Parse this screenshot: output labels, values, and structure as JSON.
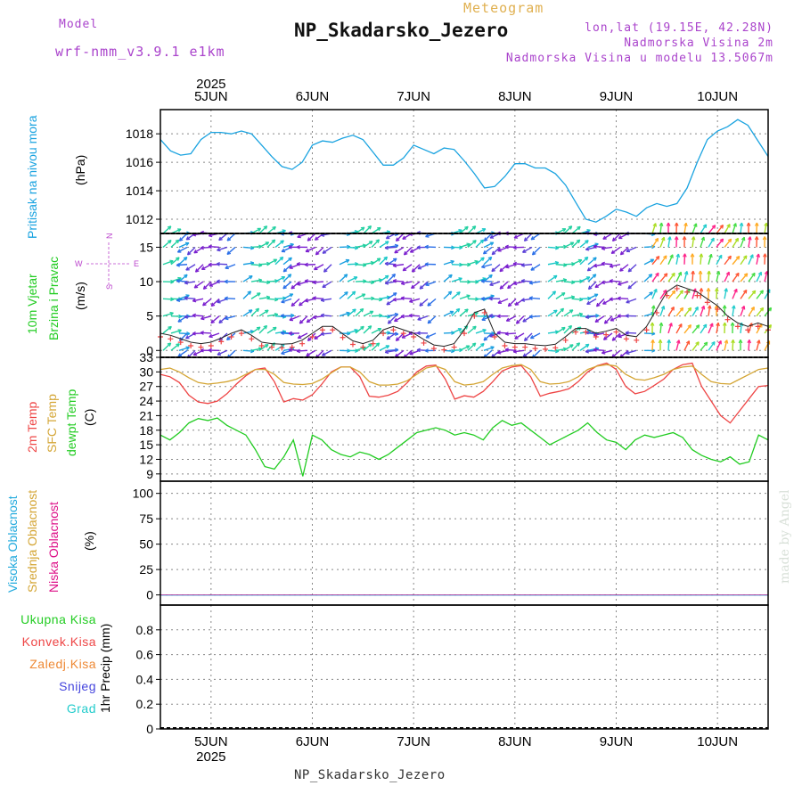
{
  "header": {
    "model_label": "Model",
    "model_name": "wrf-nmm_v3.9.1 e1km",
    "meteogram_label": "Meteogram",
    "station": "NP_Skadarsko_Jezero",
    "lonlat": "lon,lat (19.15E, 42.28N)",
    "elevation": "Nadmorska Visina 2m",
    "model_elevation": "Nadmorska Visina u modelu 13.5067m",
    "footer_station": "NP_Skadarsko_Jezero",
    "credit": "made by Angel"
  },
  "colors": {
    "pressure": "#1aa3e0",
    "wind_label": "#22cc22",
    "compass": "#bb44cc",
    "temp2m": "#ee4444",
    "sfc": "#d4a534",
    "dewp": "#22cc22",
    "high_cloud": "#22aadd",
    "mid_cloud": "#d4a534",
    "low_cloud": "#dd1188",
    "precip_total": "#22cc22",
    "precip_conv": "#ee4444",
    "precip_frz": "#ee8833",
    "snow": "#4444dd",
    "hail": "#22cccc",
    "header_purple": "#aa44cc",
    "header_gold": "#e0b050"
  },
  "axis": {
    "year": "2025",
    "dates": [
      "5JUN",
      "6JUN",
      "7JUN",
      "8JUN",
      "9JUN",
      "10JUN"
    ]
  },
  "panels": {
    "pressure": {
      "label1": "Pritisak na nivou mora",
      "label2": "(hPa)",
      "ticks": [
        "1012",
        "1014",
        "1016",
        "1018"
      ]
    },
    "wind": {
      "label1": "10m Vjetar",
      "label2": "Brzina i Pravac",
      "label3": "(m/s)",
      "ticks": [
        "0",
        "5",
        "10",
        "15"
      ],
      "compass_n": "N",
      "compass_s": "S",
      "compass_w": "W",
      "compass_e": "E"
    },
    "temp": {
      "label1": "2m Temp",
      "label2": "SFC Temp",
      "label3": "dewpt Temp",
      "label4": "(C)",
      "ticks": [
        "9",
        "12",
        "15",
        "18",
        "21",
        "24",
        "27",
        "30",
        "33"
      ]
    },
    "cloud": {
      "label1": "Visoka Oblacnost",
      "label2": "Srednja Oblacnost",
      "label3": "Niska Oblacnost",
      "label4": "(%)",
      "ticks": [
        "0",
        "25",
        "50",
        "75",
        "100"
      ]
    },
    "precip": {
      "labels": [
        "Ukupna Kisa",
        "Konvek.Kisa",
        "Zaledj.Kisa",
        "Snijeg",
        "Grad"
      ],
      "ylabel": "1hr Precip (mm)",
      "ticks": [
        "0",
        "0.2",
        "0.4",
        "0.6",
        "0.8"
      ]
    }
  },
  "chart_data": [
    {
      "type": "line",
      "name": "pressure",
      "x_start_day": 4.5,
      "x_end_day": 10.5,
      "ylim": [
        1011,
        1019.7
      ],
      "series": [
        {
          "color": "#1aa3e0",
          "values": [
            1017.6,
            1016.8,
            1016.5,
            1016.6,
            1017.6,
            1018.1,
            1018.1,
            1018.0,
            1018.2,
            1018.0,
            1017.2,
            1016.4,
            1015.7,
            1015.5,
            1016.0,
            1017.2,
            1017.5,
            1017.4,
            1017.7,
            1017.9,
            1017.6,
            1016.7,
            1015.8,
            1015.8,
            1016.3,
            1017.2,
            1016.9,
            1016.6,
            1017.0,
            1016.9,
            1016.1,
            1015.2,
            1014.2,
            1014.3,
            1015.0,
            1015.9,
            1015.9,
            1015.6,
            1015.6,
            1015.2,
            1014.4,
            1013.2,
            1012.0,
            1011.8,
            1012.2,
            1012.7,
            1012.5,
            1012.2,
            1012.8,
            1013.1,
            1012.9,
            1013.1,
            1014.2,
            1016.0,
            1017.6,
            1018.2,
            1018.5,
            1019.0,
            1018.6,
            1017.5,
            1016.4
          ]
        }
      ],
      "xlabel": "",
      "ylabel": "(hPa)"
    },
    {
      "type": "line",
      "name": "wind",
      "ylim": [
        -1,
        17
      ],
      "series": [
        {
          "color": "#ee4444",
          "values": [
            2.5,
            2.2,
            1.7,
            1.2,
            1.0,
            1.2,
            1.8,
            2.5,
            3.0,
            2.2,
            1.2,
            1.0,
            0.9,
            1.0,
            1.5,
            2.5,
            3.5,
            3.5,
            2.4,
            1.4,
            1.0,
            1.5,
            3.0,
            3.5,
            3.0,
            2.5,
            1.6,
            0.8,
            0.6,
            1.0,
            3.0,
            5.5,
            6.0,
            2.5,
            1.2,
            1.0,
            1.0,
            0.8,
            0.7,
            0.9,
            2.0,
            3.2,
            3.2,
            2.5,
            2.8,
            3.2,
            2.2,
            2.0,
            3.5,
            6.0,
            8.5,
            9.5,
            9.0,
            8.5,
            7.5,
            6.5,
            5.0,
            4.0,
            3.5,
            4.0,
            3.5
          ]
        }
      ]
    },
    {
      "type": "line",
      "name": "temperature",
      "ylim": [
        7.5,
        33
      ],
      "series": [
        {
          "name": "2m Temp",
          "color": "#ee4444",
          "values": [
            29.5,
            29.0,
            27.8,
            25.2,
            23.8,
            23.5,
            24.0,
            25.5,
            27.5,
            29.2,
            30.5,
            30.8,
            28.0,
            23.8,
            24.5,
            24.2,
            25.3,
            27.5,
            30.0,
            31.0,
            31.0,
            29.0,
            25.0,
            24.8,
            25.2,
            26.0,
            27.8,
            30.0,
            31.2,
            31.4,
            28.5,
            24.4,
            25.1,
            24.8,
            26.0,
            28.0,
            30.2,
            31.0,
            31.3,
            29.0,
            25.0,
            25.6,
            26.0,
            26.5,
            28.0,
            30.0,
            31.3,
            31.8,
            30.5,
            27.0,
            25.5,
            26.0,
            27.2,
            28.5,
            30.5,
            31.5,
            31.8,
            27.0,
            24.0,
            21.0,
            19.5,
            22.0,
            24.5,
            27.0,
            27.2
          ]
        },
        {
          "name": "SFC Temp",
          "color": "#d4a534",
          "values": [
            30.5,
            30.8,
            30.0,
            28.8,
            27.8,
            27.5,
            27.7,
            28.0,
            28.5,
            29.5,
            30.5,
            30.5,
            29.5,
            27.8,
            27.5,
            27.4,
            27.6,
            28.5,
            29.8,
            31.0,
            31.0,
            30.0,
            28.0,
            27.3,
            27.3,
            27.5,
            28.2,
            29.5,
            30.8,
            31.2,
            30.5,
            28.0,
            27.3,
            27.5,
            28.0,
            29.5,
            30.8,
            31.3,
            31.5,
            30.5,
            28.0,
            27.5,
            27.6,
            28.0,
            29.0,
            30.5,
            31.2,
            31.5,
            31.2,
            29.5,
            28.5,
            28.3,
            28.8,
            29.5,
            30.5,
            31.0,
            31.2,
            29.5,
            28.0,
            27.6,
            27.5,
            28.5,
            29.5,
            30.5,
            30.8
          ]
        },
        {
          "name": "dewpt Temp",
          "color": "#22cc22",
          "values": [
            17.0,
            16.0,
            17.5,
            19.5,
            20.4,
            20.0,
            20.5,
            19.0,
            18.0,
            17.0,
            14.0,
            10.5,
            10.0,
            12.5,
            16.0,
            8.5,
            17.0,
            16.0,
            14.0,
            13.0,
            12.5,
            13.5,
            13.0,
            12.0,
            13.0,
            14.5,
            16.0,
            17.5,
            18.0,
            18.5,
            18.0,
            17.0,
            17.5,
            17.0,
            16.0,
            18.5,
            20.0,
            19.0,
            19.5,
            18.0,
            16.5,
            15.0,
            16.0,
            17.0,
            18.0,
            19.5,
            17.5,
            16.0,
            15.5,
            14.0,
            16.0,
            17.0,
            16.5,
            17.0,
            17.5,
            16.5,
            14.0,
            12.8,
            12.0,
            11.5,
            12.5,
            11.0,
            11.5,
            17.0,
            16.0
          ]
        }
      ]
    },
    {
      "type": "line",
      "name": "cloud",
      "ylim": [
        -10,
        112
      ],
      "series": [
        {
          "name": "Niska Oblacnost",
          "color": "#dd1188",
          "values": [
            0,
            0
          ]
        }
      ]
    },
    {
      "type": "bar",
      "name": "precip",
      "ylim": [
        0,
        1.0
      ],
      "series": [
        {
          "name": "Ukupna Kisa",
          "values": []
        }
      ]
    }
  ]
}
